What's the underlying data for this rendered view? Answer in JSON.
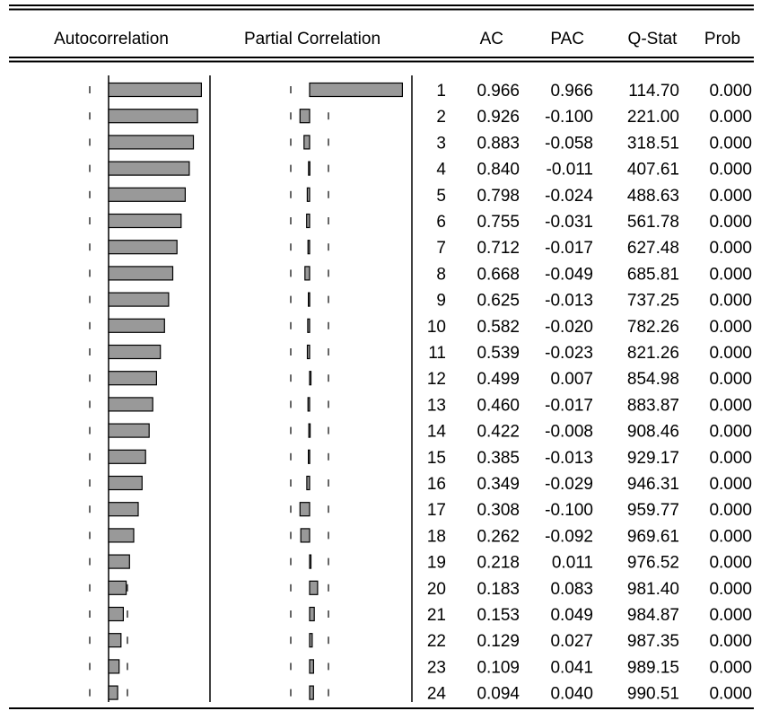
{
  "columns": {
    "autocorrelation": "Autocorrelation",
    "partial_correlation": "Partial Correlation",
    "ac": "AC",
    "pac": "PAC",
    "qstat": "Q-Stat",
    "prob": "Prob"
  },
  "colors": {
    "bar_fill": "#999999",
    "bar_stroke": "#000000",
    "rule": "#000000"
  },
  "chart_data": {
    "type": "table",
    "columns": [
      "",
      "AC",
      "PAC",
      "Q-Stat",
      "Prob"
    ],
    "bar_scale": [
      -1,
      1
    ],
    "rows": [
      {
        "lag": "1",
        "ac": "0.966",
        "pac": "0.966",
        "q": "114.70",
        "prob": "0.000"
      },
      {
        "lag": "2",
        "ac": "0.926",
        "pac": "-0.100",
        "q": "221.00",
        "prob": "0.000"
      },
      {
        "lag": "3",
        "ac": "0.883",
        "pac": "-0.058",
        "q": "318.51",
        "prob": "0.000"
      },
      {
        "lag": "4",
        "ac": "0.840",
        "pac": "-0.011",
        "q": "407.61",
        "prob": "0.000"
      },
      {
        "lag": "5",
        "ac": "0.798",
        "pac": "-0.024",
        "q": "488.63",
        "prob": "0.000"
      },
      {
        "lag": "6",
        "ac": "0.755",
        "pac": "-0.031",
        "q": "561.78",
        "prob": "0.000"
      },
      {
        "lag": "7",
        "ac": "0.712",
        "pac": "-0.017",
        "q": "627.48",
        "prob": "0.000"
      },
      {
        "lag": "8",
        "ac": "0.668",
        "pac": "-0.049",
        "q": "685.81",
        "prob": "0.000"
      },
      {
        "lag": "9",
        "ac": "0.625",
        "pac": "-0.013",
        "q": "737.25",
        "prob": "0.000"
      },
      {
        "lag": "10",
        "ac": "0.582",
        "pac": "-0.020",
        "q": "782.26",
        "prob": "0.000"
      },
      {
        "lag": "11",
        "ac": "0.539",
        "pac": "-0.023",
        "q": "821.26",
        "prob": "0.000"
      },
      {
        "lag": "12",
        "ac": "0.499",
        "pac": "0.007",
        "q": "854.98",
        "prob": "0.000"
      },
      {
        "lag": "13",
        "ac": "0.460",
        "pac": "-0.017",
        "q": "883.87",
        "prob": "0.000"
      },
      {
        "lag": "14",
        "ac": "0.422",
        "pac": "-0.008",
        "q": "908.46",
        "prob": "0.000"
      },
      {
        "lag": "15",
        "ac": "0.385",
        "pac": "-0.013",
        "q": "929.17",
        "prob": "0.000"
      },
      {
        "lag": "16",
        "ac": "0.349",
        "pac": "-0.029",
        "q": "946.31",
        "prob": "0.000"
      },
      {
        "lag": "17",
        "ac": "0.308",
        "pac": "-0.100",
        "q": "959.77",
        "prob": "0.000"
      },
      {
        "lag": "18",
        "ac": "0.262",
        "pac": "-0.092",
        "q": "969.61",
        "prob": "0.000"
      },
      {
        "lag": "19",
        "ac": "0.218",
        "pac": "0.011",
        "q": "976.52",
        "prob": "0.000"
      },
      {
        "lag": "20",
        "ac": "0.183",
        "pac": "0.083",
        "q": "981.40",
        "prob": "0.000"
      },
      {
        "lag": "21",
        "ac": "0.153",
        "pac": "0.049",
        "q": "984.87",
        "prob": "0.000"
      },
      {
        "lag": "22",
        "ac": "0.129",
        "pac": "0.027",
        "q": "987.35",
        "prob": "0.000"
      },
      {
        "lag": "23",
        "ac": "0.109",
        "pac": "0.041",
        "q": "989.15",
        "prob": "0.000"
      },
      {
        "lag": "24",
        "ac": "0.094",
        "pac": "0.040",
        "q": "990.51",
        "prob": "0.000"
      }
    ]
  }
}
